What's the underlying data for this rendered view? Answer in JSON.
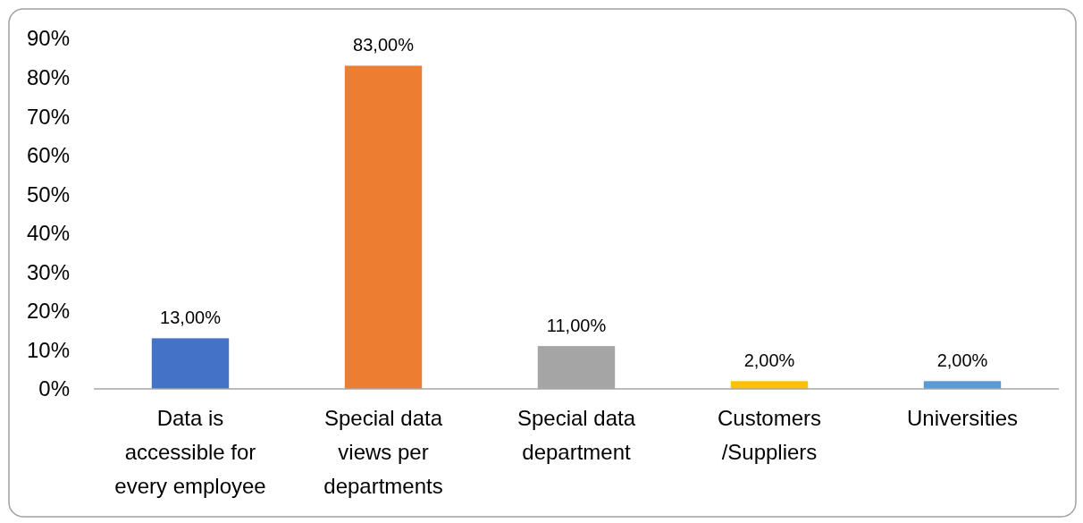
{
  "chart_data": {
    "type": "bar",
    "categories": [
      "Data is accessible for every employee",
      "Special data views per departments",
      "Special data department",
      "Customers /Suppliers",
      "Universities"
    ],
    "values": [
      13,
      83,
      11,
      2,
      2
    ],
    "colors": [
      "#4472c4",
      "#ed7d31",
      "#a5a5a5",
      "#ffc000",
      "#5b9bd5"
    ],
    "value_labels": [
      "13,00%",
      "83,00%",
      "11,00%",
      "2,00%",
      "2,00%"
    ],
    "ylim": [
      0,
      90
    ],
    "yticks": [
      {
        "value": 0,
        "label": "0%"
      },
      {
        "value": 10,
        "label": "10%"
      },
      {
        "value": 20,
        "label": "20%"
      },
      {
        "value": 30,
        "label": "30%"
      },
      {
        "value": 40,
        "label": "40%"
      },
      {
        "value": 50,
        "label": "50%"
      },
      {
        "value": 60,
        "label": "60%"
      },
      {
        "value": 70,
        "label": "70%"
      },
      {
        "value": 80,
        "label": "80%"
      },
      {
        "value": 90,
        "label": "90%"
      }
    ],
    "grid": false
  }
}
